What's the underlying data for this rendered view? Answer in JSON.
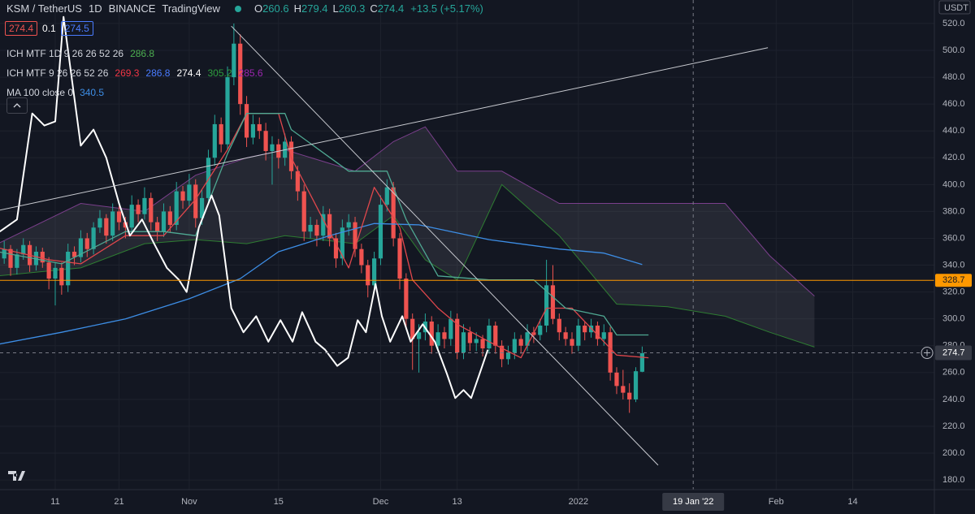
{
  "chart_data": {
    "type": "candlestick",
    "header": {
      "symbol": "KSM / TetherUS",
      "interval": "1D",
      "exchange": "BINANCE",
      "source": "TradingView",
      "ohlc_letters": [
        "O",
        "H",
        "L",
        "C"
      ],
      "change": "+13.5 (+5.17%)"
    },
    "buttons": [
      274.4,
      0.1,
      274.5
    ],
    "indicators": [
      {
        "name": "ICH MTF 1D 9 26 26 52 26",
        "values": [
          286.8
        ],
        "colors": [
          "#4caf50"
        ]
      },
      {
        "name": "ICH MTF 9 26 26 52 26",
        "values": [
          269.3,
          286.8,
          274.4,
          305.2,
          285.6
        ],
        "colors": [
          "#f23645",
          "#4a7cff",
          "#ffffff",
          "#2e9e3e",
          "#9c27b0"
        ]
      },
      {
        "name": "MA 100 close 0",
        "values": [
          340.5
        ],
        "colors": [
          "#3d8ee6"
        ]
      }
    ],
    "currency": "USDT",
    "up_color": "#26a69a",
    "down_color": "#ef5350",
    "xlim": [
      0.34,
      146.8
    ],
    "ylim": [
      172.8,
      537.5
    ],
    "grid": true,
    "yticks": [
      {
        "value": 180,
        "label": "180.0"
      },
      {
        "value": 200,
        "label": "200.0"
      },
      {
        "value": 220,
        "label": "220.0"
      },
      {
        "value": 240,
        "label": "240.0"
      },
      {
        "value": 260,
        "label": "260.0"
      },
      {
        "value": 280,
        "label": "280.0"
      },
      {
        "value": 300,
        "label": "300.0"
      },
      {
        "value": 320,
        "label": "320.0"
      },
      {
        "value": 340,
        "label": "340.0"
      },
      {
        "value": 360,
        "label": "360.0"
      },
      {
        "value": 380,
        "label": "380.0"
      },
      {
        "value": 400,
        "label": "400.0"
      },
      {
        "value": 420,
        "label": "420.0"
      },
      {
        "value": 440,
        "label": "440.0"
      },
      {
        "value": 460,
        "label": "460.0"
      },
      {
        "value": 480,
        "label": "480.0"
      },
      {
        "value": 500,
        "label": "500.0"
      },
      {
        "value": 520,
        "label": "520.0"
      }
    ],
    "xticks": [
      {
        "value": 9,
        "label": "11"
      },
      {
        "value": 19,
        "label": "21"
      },
      {
        "value": 30,
        "label": "Nov"
      },
      {
        "value": 44,
        "label": "15"
      },
      {
        "value": 60,
        "label": "Dec"
      },
      {
        "value": 72,
        "label": "13"
      },
      {
        "value": 91,
        "label": "2022"
      },
      {
        "value": 122,
        "label": "Feb"
      },
      {
        "value": 134,
        "label": "14"
      }
    ],
    "candles": [
      [
        340,
        350,
        334,
        345
      ],
      [
        345,
        358,
        341,
        352
      ],
      [
        352,
        355,
        332,
        338
      ],
      [
        338,
        352,
        333,
        348
      ],
      [
        348,
        360,
        344,
        355
      ],
      [
        355,
        358,
        335,
        340
      ],
      [
        340,
        354,
        336,
        350
      ],
      [
        350,
        353,
        338,
        342
      ],
      [
        342,
        346,
        322,
        330
      ],
      [
        330,
        342,
        310,
        338
      ],
      [
        338,
        342,
        318,
        325
      ],
      [
        325,
        356,
        320,
        350
      ],
      [
        350,
        354,
        340,
        346
      ],
      [
        346,
        366,
        342,
        360
      ],
      [
        360,
        364,
        346,
        352
      ],
      [
        352,
        372,
        348,
        368
      ],
      [
        368,
        381,
        364,
        375
      ],
      [
        375,
        378,
        356,
        362
      ],
      [
        362,
        386,
        358,
        380
      ],
      [
        380,
        384,
        366,
        372
      ],
      [
        372,
        376,
        360,
        368
      ],
      [
        368,
        392,
        364,
        385
      ],
      [
        385,
        389,
        372,
        378
      ],
      [
        378,
        398,
        374,
        390
      ],
      [
        390,
        394,
        366,
        372
      ],
      [
        372,
        376,
        358,
        365
      ],
      [
        365,
        386,
        361,
        380
      ],
      [
        380,
        384,
        364,
        370
      ],
      [
        370,
        402,
        366,
        395
      ],
      [
        395,
        399,
        382,
        388
      ],
      [
        388,
        408,
        384,
        400
      ],
      [
        400,
        404,
        368,
        375
      ],
      [
        375,
        396,
        370,
        390
      ],
      [
        390,
        426,
        386,
        420
      ],
      [
        420,
        452,
        414,
        445
      ],
      [
        445,
        450,
        424,
        430
      ],
      [
        430,
        488,
        426,
        480
      ],
      [
        480,
        520,
        474,
        505
      ],
      [
        505,
        512,
        452,
        460
      ],
      [
        460,
        466,
        428,
        435
      ],
      [
        435,
        452,
        430,
        445
      ],
      [
        445,
        450,
        434,
        440
      ],
      [
        440,
        446,
        418,
        425
      ],
      [
        425,
        436,
        400,
        430
      ],
      [
        430,
        434,
        412,
        420
      ],
      [
        420,
        438,
        414,
        432
      ],
      [
        432,
        436,
        404,
        410
      ],
      [
        410,
        414,
        388,
        395
      ],
      [
        395,
        400,
        358,
        365
      ],
      [
        365,
        376,
        360,
        370
      ],
      [
        370,
        374,
        354,
        362
      ],
      [
        362,
        384,
        358,
        378
      ],
      [
        378,
        382,
        354,
        360
      ],
      [
        360,
        364,
        338,
        345
      ],
      [
        345,
        374,
        340,
        368
      ],
      [
        368,
        378,
        362,
        372
      ],
      [
        372,
        376,
        346,
        352
      ],
      [
        352,
        356,
        334,
        340
      ],
      [
        340,
        344,
        316,
        325
      ],
      [
        325,
        350,
        320,
        345
      ],
      [
        345,
        392,
        340,
        385
      ],
      [
        385,
        404,
        380,
        398
      ],
      [
        398,
        402,
        354,
        360
      ],
      [
        360,
        364,
        322,
        330
      ],
      [
        330,
        334,
        292,
        300
      ],
      [
        300,
        304,
        262,
        285
      ],
      [
        285,
        296,
        260,
        290
      ],
      [
        290,
        304,
        284,
        298
      ],
      [
        298,
        302,
        274,
        280
      ],
      [
        280,
        296,
        276,
        290
      ],
      [
        290,
        294,
        278,
        285
      ],
      [
        285,
        306,
        280,
        300
      ],
      [
        300,
        304,
        270,
        275
      ],
      [
        275,
        296,
        270,
        290
      ],
      [
        290,
        294,
        276,
        282
      ],
      [
        282,
        290,
        276,
        285
      ],
      [
        285,
        288,
        272,
        278
      ],
      [
        278,
        300,
        274,
        295
      ],
      [
        295,
        298,
        274,
        280
      ],
      [
        280,
        284,
        264,
        270
      ],
      [
        270,
        280,
        266,
        275
      ],
      [
        275,
        290,
        270,
        285
      ],
      [
        285,
        288,
        274,
        280
      ],
      [
        280,
        296,
        276,
        290
      ],
      [
        290,
        294,
        282,
        288
      ],
      [
        288,
        300,
        284,
        295
      ],
      [
        295,
        344,
        290,
        325
      ],
      [
        325,
        340,
        296,
        300
      ],
      [
        300,
        304,
        284,
        290
      ],
      [
        290,
        294,
        280,
        285
      ],
      [
        285,
        290,
        274,
        280
      ],
      [
        280,
        300,
        276,
        295
      ],
      [
        295,
        298,
        284,
        290
      ],
      [
        290,
        300,
        286,
        295
      ],
      [
        295,
        298,
        280,
        285
      ],
      [
        285,
        296,
        280,
        290
      ],
      [
        290,
        294,
        254,
        260
      ],
      [
        260,
        264,
        244,
        250
      ],
      [
        250,
        262,
        240,
        245
      ],
      [
        245,
        252,
        230,
        240
      ],
      [
        240,
        264,
        238,
        261
      ],
      [
        260.6,
        279.4,
        260.3,
        274.4
      ]
    ],
    "cloud": {
      "fill": "rgba(120,123,134,0.18)",
      "upper_color": "#7b3f8c",
      "lower_color": "#2e7d32",
      "x": [
        0,
        13,
        23,
        31,
        39,
        45,
        56,
        62,
        67,
        72,
        79,
        88,
        97,
        105,
        114,
        121,
        128
      ],
      "upper": [
        356,
        386,
        380,
        407,
        420,
        426,
        410,
        432,
        443,
        410,
        410,
        386,
        386,
        386,
        386,
        347,
        317
      ],
      "lower": [
        332,
        338,
        356,
        359,
        356,
        362,
        356,
        377,
        344,
        329,
        400,
        362,
        311,
        309,
        302,
        290,
        279
      ]
    },
    "lines": [
      {
        "color": "#3d8ee6",
        "width": 1.3,
        "x": [
          0,
          10,
          20,
          30,
          38,
          44,
          52,
          59,
          66,
          77,
          88,
          95,
          101
        ],
        "values": [
          281,
          290,
          300,
          315,
          330,
          350,
          362,
          371,
          370,
          359,
          352,
          349,
          340.5
        ]
      },
      {
        "color": "#e0474c",
        "width": 1.3,
        "x": [
          0,
          8,
          13,
          20,
          26,
          31,
          36,
          39,
          44,
          46,
          51,
          55,
          59,
          63,
          65,
          69,
          72,
          77,
          82,
          86,
          90,
          95,
          97,
          102
        ],
        "values": [
          353,
          344,
          341,
          362,
          362,
          389,
          426,
          453,
          453,
          420,
          374,
          338,
          398,
          368,
          329,
          308,
          296,
          283,
          271,
          308,
          308,
          283,
          273,
          271
        ]
      },
      {
        "color": "#4fa892",
        "width": 1.3,
        "x": [
          0,
          10,
          20,
          26,
          31,
          36,
          39,
          45,
          46,
          55,
          61,
          64,
          69,
          77,
          84,
          89,
          95,
          97,
          102
        ],
        "values": [
          350,
          341,
          365,
          365,
          362,
          423,
          453,
          453,
          441,
          410,
          410,
          374,
          332,
          329,
          329,
          308,
          302,
          288,
          288
        ]
      },
      {
        "color": "#ffffff",
        "width": 2,
        "x": [
          0.3,
          3,
          5.4,
          7.3,
          9,
          10.3,
          13,
          15,
          17,
          19,
          20.7,
          22.6,
          24.5,
          26.5,
          28.4,
          29.6,
          31.5,
          33.5,
          34.7,
          36.6,
          38.5,
          40.5,
          42.4,
          44.3,
          46.2,
          47.7,
          49.8,
          51.3,
          53.2,
          54.9,
          56.4,
          57.7,
          59.2,
          60.2,
          61.5,
          63.4,
          64.7,
          66.6,
          68.5,
          70.4,
          71.7,
          73,
          74.2,
          75.5,
          76.8
        ],
        "values": [
          365,
          374,
          453,
          444,
          447,
          525,
          429,
          441,
          420,
          386,
          362,
          374,
          356,
          338,
          329,
          320,
          368,
          392,
          377,
          308,
          290,
          302,
          283,
          299,
          283,
          305,
          283,
          277,
          265,
          271,
          299,
          290,
          326,
          302,
          283,
          302,
          283,
          296,
          283,
          259,
          241,
          247,
          241,
          259,
          277
        ]
      },
      {
        "color": "#c8cad0",
        "width": 1,
        "x": [
          0.3,
          120.7
        ],
        "values": [
          381,
          502
        ]
      },
      {
        "color": "#c8cad0",
        "width": 1,
        "x": [
          36.6,
          103.5
        ],
        "values": [
          518,
          191
        ]
      }
    ],
    "hline": {
      "value": 328.7,
      "color": "#ff9800"
    },
    "crosshair": {
      "x": 109,
      "x_label": "19 Jan '22",
      "y": 274.7
    }
  }
}
